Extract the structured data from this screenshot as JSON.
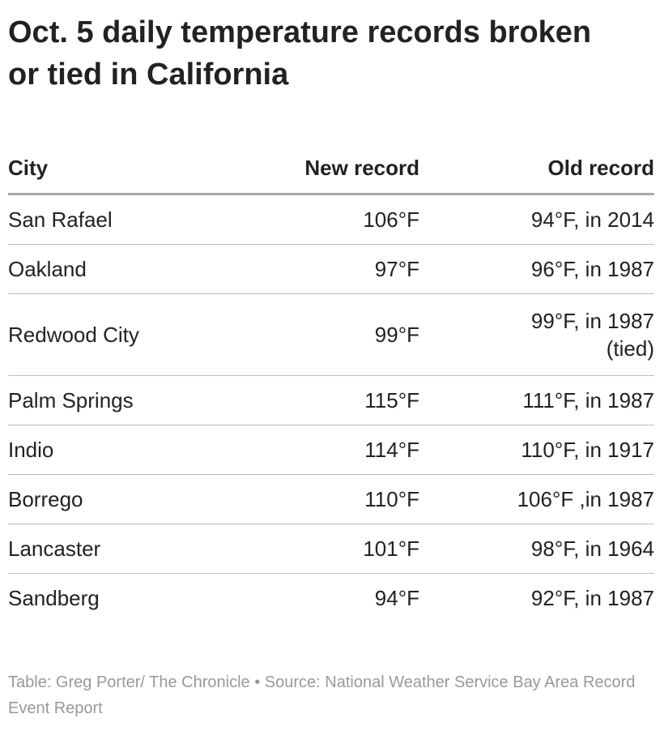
{
  "header": {
    "title": "Oct. 5 daily temperature records broken or tied in California"
  },
  "table": {
    "columns": [
      "City",
      "New record",
      "Old record"
    ],
    "rows": [
      [
        "San Rafael",
        "106°F",
        "94°F, in 2014"
      ],
      [
        "Oakland",
        "97°F",
        "96°F, in 1987"
      ],
      [
        "Redwood City",
        "99°F",
        "99°F, in 1987 (tied)"
      ],
      [
        "Palm Springs",
        "115°F",
        "111°F, in 1987"
      ],
      [
        "Indio",
        "114°F",
        "110°F, in 1917"
      ],
      [
        "Borrego",
        "110°F",
        "106°F ,in 1987"
      ],
      [
        "Lancaster",
        "101°F",
        "98°F, in 1964"
      ],
      [
        "Sandberg",
        "94°F",
        "92°F, in 1987"
      ]
    ]
  },
  "footer": {
    "note": "Table: Greg Porter/ The Chronicle • Source: National Weather Service Bay Area Record Event Report"
  }
}
